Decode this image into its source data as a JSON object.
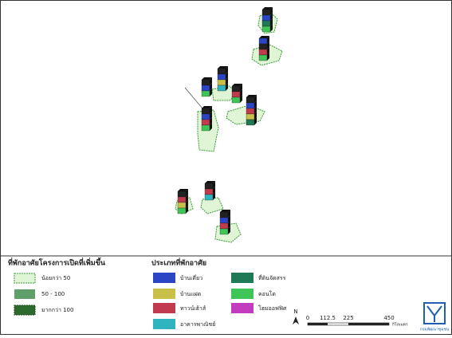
{
  "legend_density": {
    "title": "ที่พักอาศัยโครงการเปิดที่เพิ่มขึ้น",
    "items": [
      "น้อยกว่า 50",
      "50 - 100",
      "มากกว่า 100"
    ]
  },
  "legend_type": {
    "title": "ประเภทที่พักอาศัย",
    "items": [
      "บ้านเดี่ยว",
      "บ้านแฝด",
      "ทาวน์เฮ้าส์",
      "อาคารพาณิชย์",
      "ที่ดินจัดสรร",
      "คอนโด",
      "โฮมออฟฟิศ"
    ]
  },
  "north": "N",
  "scale": {
    "ticks": [
      0,
      112.5,
      225,
      450
    ],
    "unit": "กิโลเมตร"
  },
  "logo": "กรมพัฒนาชุมชน"
}
